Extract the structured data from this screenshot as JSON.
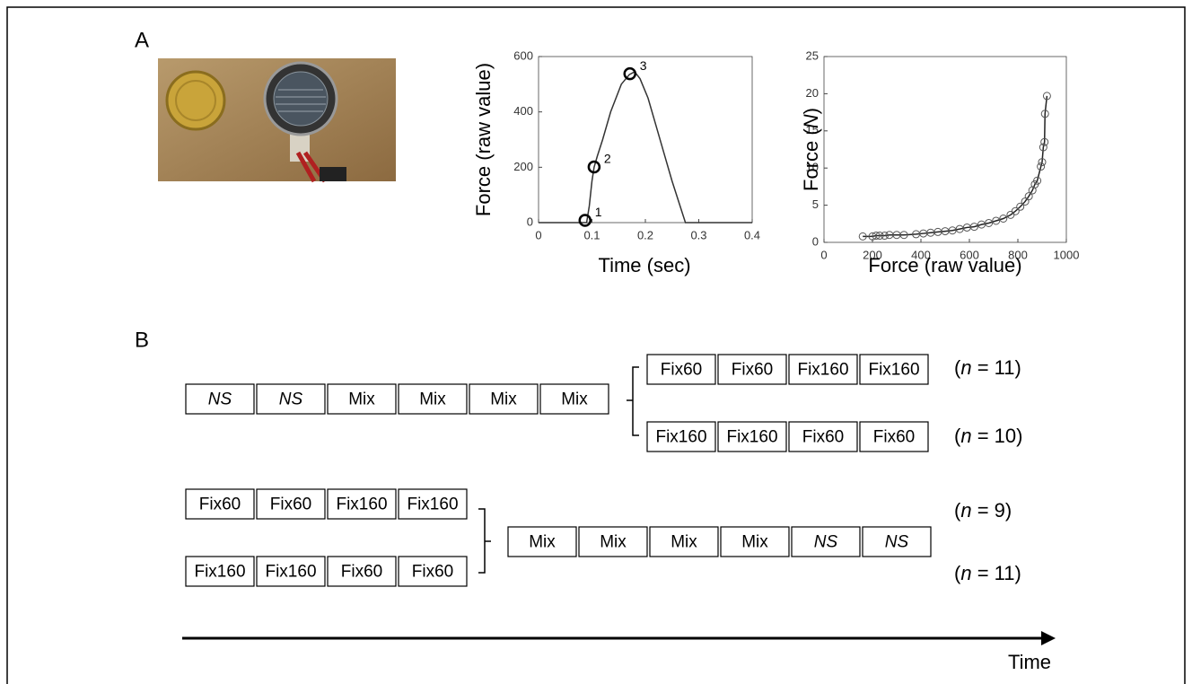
{
  "panel_labels": [
    "A",
    "B"
  ],
  "chart_data": [
    {
      "type": "line",
      "xlabel": "Time (sec)",
      "ylabel": "Force (raw value)",
      "x": [
        0,
        0.09,
        0.095,
        0.1,
        0.104,
        0.11,
        0.12,
        0.135,
        0.155,
        0.17,
        0.18,
        0.19,
        0.205,
        0.22,
        0.235,
        0.25,
        0.265,
        0.275,
        0.4
      ],
      "series": [
        {
          "color": "#333333",
          "values": [
            0,
            0,
            60,
            150,
            200,
            240,
            300,
            400,
            500,
            535,
            545,
            520,
            450,
            350,
            250,
            150,
            60,
            0,
            0
          ]
        }
      ],
      "points": [
        {
          "x": 0.087,
          "y": 8,
          "label": "1"
        },
        {
          "x": 0.104,
          "y": 201,
          "label": "2"
        },
        {
          "x": 0.171,
          "y": 538,
          "label": "3"
        }
      ],
      "xlim": [
        0,
        0.4
      ],
      "xticks": [
        0,
        0.1,
        0.2,
        0.3,
        0.4
      ],
      "ylim": [
        0,
        600
      ],
      "yticks": [
        0,
        200,
        400,
        600
      ]
    },
    {
      "type": "scatter",
      "connect": true,
      "xlabel": "Force (raw value)",
      "ylabel": [
        "Force (",
        "N",
        ")"
      ],
      "x": [
        160,
        200,
        215,
        230,
        250,
        270,
        300,
        330,
        380,
        410,
        440,
        470,
        500,
        530,
        560,
        590,
        620,
        650,
        680,
        710,
        740,
        770,
        790,
        810,
        830,
        845,
        860,
        870,
        880,
        895,
        900,
        905,
        910,
        912,
        920
      ],
      "series": [
        {
          "color": "#555555",
          "values": [
            0.8,
            0.8,
            0.9,
            0.9,
            0.9,
            1.0,
            1.0,
            1.0,
            1.1,
            1.2,
            1.3,
            1.4,
            1.5,
            1.6,
            1.8,
            2.0,
            2.1,
            2.4,
            2.6,
            2.9,
            3.2,
            3.7,
            4.2,
            4.8,
            5.5,
            6.2,
            7.0,
            7.8,
            8.3,
            10.2,
            10.8,
            12.8,
            13.5,
            17.3,
            19.7
          ]
        }
      ],
      "xlim": [
        0,
        1000
      ],
      "xticks": [
        0,
        200,
        400,
        600,
        800,
        1000
      ],
      "ylim": [
        0,
        25
      ],
      "yticks": [
        0,
        5,
        10,
        15,
        20,
        25
      ]
    }
  ],
  "diagram": {
    "groups": [
      {
        "common": [
          {
            "label": "NS",
            "italic": true
          },
          {
            "label": "NS",
            "italic": true
          },
          {
            "label": "Mix"
          },
          {
            "label": "Mix"
          },
          {
            "label": "Mix"
          },
          {
            "label": "Mix"
          }
        ],
        "branches": [
          {
            "blocks": [
              {
                "label": "Fix60"
              },
              {
                "label": "Fix60"
              },
              {
                "label": "Fix160"
              },
              {
                "label": "Fix160"
              }
            ],
            "n": [
              "(",
              "n",
              " = 11)"
            ]
          },
          {
            "blocks": [
              {
                "label": "Fix160"
              },
              {
                "label": "Fix160"
              },
              {
                "label": "Fix60"
              },
              {
                "label": "Fix60"
              }
            ],
            "n": [
              "(",
              "n",
              " = 10)"
            ]
          }
        ]
      },
      {
        "common": [
          {
            "label": "Mix"
          },
          {
            "label": "Mix"
          },
          {
            "label": "Mix"
          },
          {
            "label": "Mix"
          },
          {
            "label": "NS",
            "italic": true
          },
          {
            "label": "NS",
            "italic": true
          }
        ],
        "branches": [
          {
            "blocks": [
              {
                "label": "Fix60"
              },
              {
                "label": "Fix60"
              },
              {
                "label": "Fix160"
              },
              {
                "label": "Fix160"
              }
            ],
            "n": [
              "(",
              "n",
              " = 9)"
            ]
          },
          {
            "blocks": [
              {
                "label": "Fix160"
              },
              {
                "label": "Fix160"
              },
              {
                "label": "Fix60"
              },
              {
                "label": "Fix60"
              }
            ],
            "n": [
              "(",
              "n",
              " = 11)"
            ]
          }
        ]
      }
    ],
    "time_label": "Time"
  }
}
